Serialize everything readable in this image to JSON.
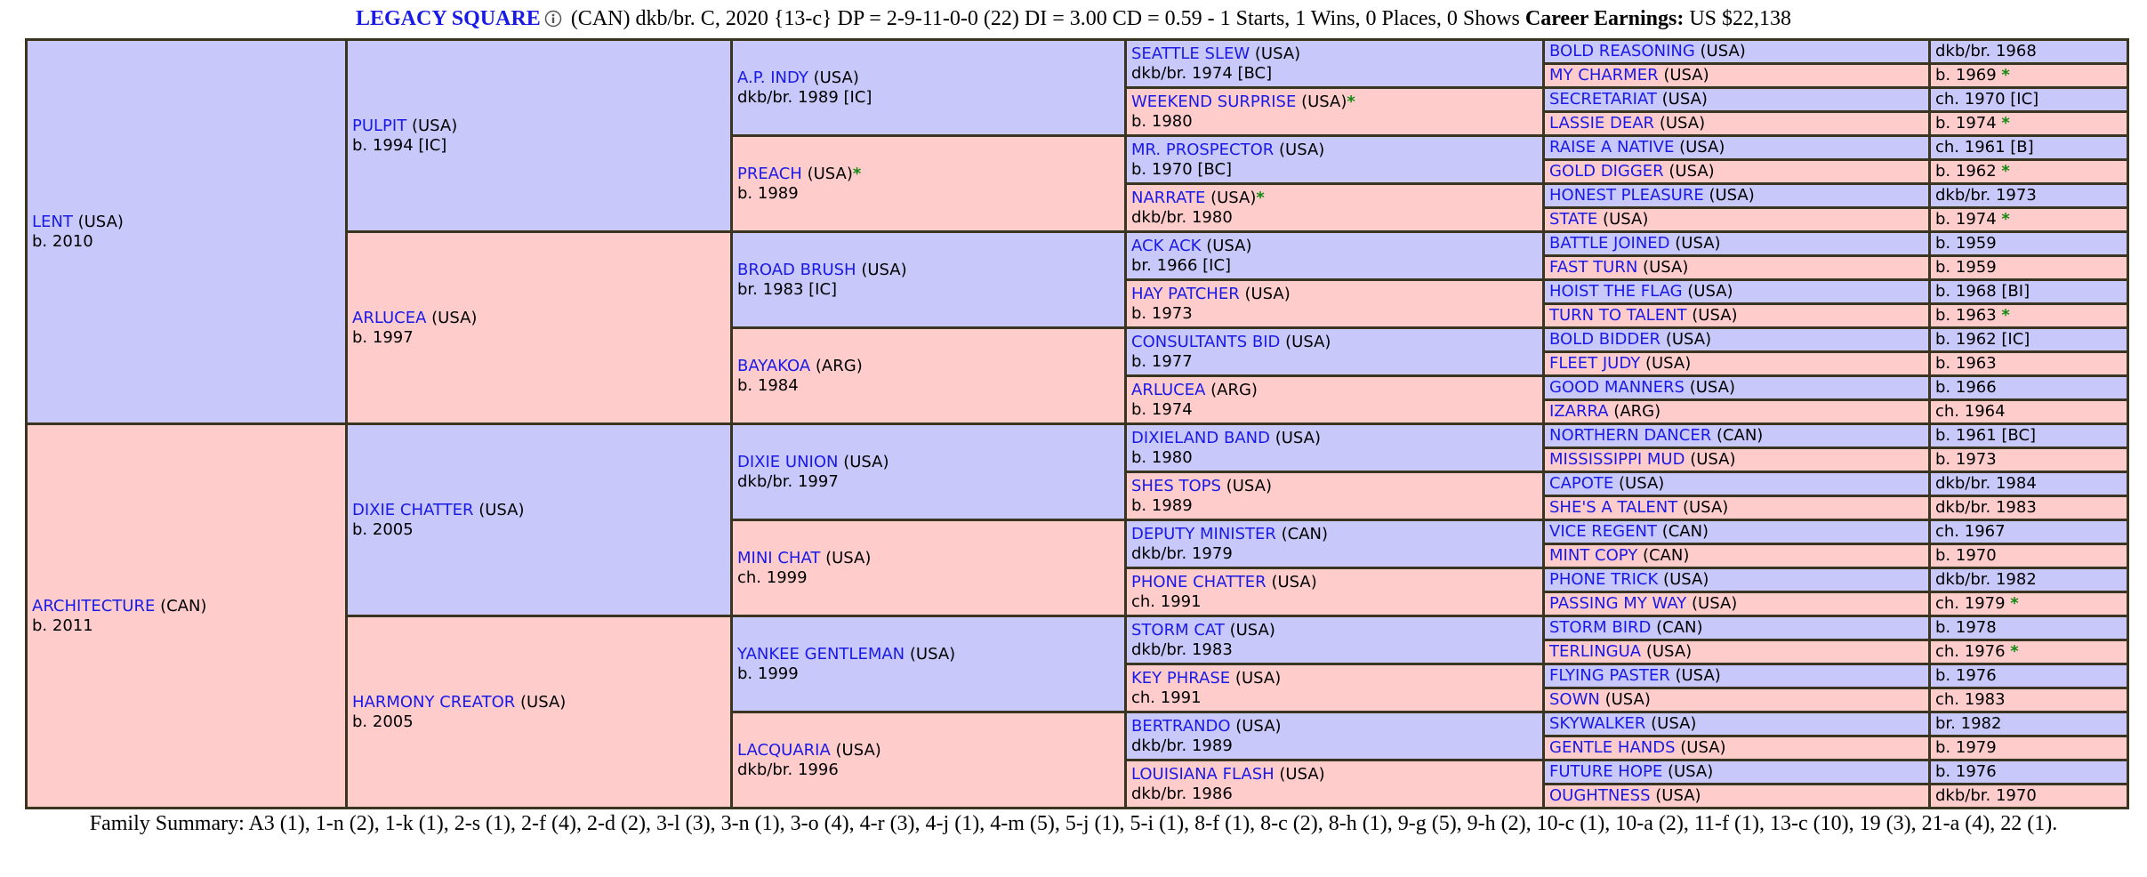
{
  "header": {
    "name": "LEGACY SQUARE",
    "details": "(CAN) dkb/br. C, 2020 {13-c} DP = 2-9-11-0-0 (22) DI = 3.00   CD = 0.59 - 1 Starts, 1 Wins, 0 Places, 0 Shows",
    "earnings_label": "Career Earnings:",
    "earnings": "US $22,138"
  },
  "generations": [
    [
      {
        "name": "LENT",
        "country": "(USA)",
        "birth": "b. 2010"
      },
      {
        "name": "ARCHITECTURE",
        "country": "(CAN)",
        "birth": "b. 2011"
      }
    ],
    [
      {
        "name": "PULPIT",
        "country": "(USA)",
        "birth": "b. 1994 [IC]"
      },
      {
        "name": "ARLUCEA",
        "country": "(USA)",
        "birth": "b. 1997"
      },
      {
        "name": "DIXIE CHATTER",
        "country": "(USA)",
        "birth": "b. 2005"
      },
      {
        "name": "HARMONY CREATOR",
        "country": "(USA)",
        "birth": "b. 2005"
      }
    ],
    [
      {
        "name": "A.P. INDY",
        "country": "(USA)",
        "birth": "dkb/br. 1989 [IC]"
      },
      {
        "name": "PREACH",
        "country": "(USA)",
        "star": "*",
        "birth": "b. 1989"
      },
      {
        "name": "BROAD BRUSH",
        "country": "(USA)",
        "birth": "br. 1983 [IC]"
      },
      {
        "name": "BAYAKOA",
        "country": "(ARG)",
        "birth": "b. 1984"
      },
      {
        "name": "DIXIE UNION",
        "country": "(USA)",
        "birth": "dkb/br. 1997"
      },
      {
        "name": "MINI CHAT",
        "country": "(USA)",
        "birth": "ch. 1999"
      },
      {
        "name": "YANKEE GENTLEMAN",
        "country": "(USA)",
        "birth": "b. 1999"
      },
      {
        "name": "LACQUARIA",
        "country": "(USA)",
        "birth": "dkb/br. 1996"
      }
    ],
    [
      {
        "name": "SEATTLE SLEW",
        "country": "(USA)",
        "birth": "dkb/br. 1974 [BC]"
      },
      {
        "name": "WEEKEND SURPRISE",
        "country": "(USA)",
        "star": "*",
        "birth": "b. 1980"
      },
      {
        "name": "MR. PROSPECTOR",
        "country": "(USA)",
        "birth": "b. 1970 [BC]"
      },
      {
        "name": "NARRATE",
        "country": "(USA)",
        "star": "*",
        "birth": "dkb/br. 1980"
      },
      {
        "name": "ACK ACK",
        "country": "(USA)",
        "birth": "br. 1966 [IC]"
      },
      {
        "name": "HAY PATCHER",
        "country": "(USA)",
        "birth": "b. 1973"
      },
      {
        "name": "CONSULTANTS BID",
        "country": "(USA)",
        "birth": "b. 1977"
      },
      {
        "name": "ARLUCEA",
        "country": "(ARG)",
        "birth": "b. 1974"
      },
      {
        "name": "DIXIELAND BAND",
        "country": "(USA)",
        "birth": "b. 1980"
      },
      {
        "name": "SHES TOPS",
        "country": "(USA)",
        "birth": "b. 1989"
      },
      {
        "name": "DEPUTY MINISTER",
        "country": "(CAN)",
        "birth": "dkb/br. 1979"
      },
      {
        "name": "PHONE CHATTER",
        "country": "(USA)",
        "birth": "ch. 1991"
      },
      {
        "name": "STORM CAT",
        "country": "(USA)",
        "birth": "dkb/br. 1983"
      },
      {
        "name": "KEY PHRASE",
        "country": "(USA)",
        "birth": "ch. 1991"
      },
      {
        "name": "BERTRANDO",
        "country": "(USA)",
        "birth": "dkb/br. 1989"
      },
      {
        "name": "LOUISIANA FLASH",
        "country": "(USA)",
        "birth": "dkb/br. 1986"
      }
    ],
    [
      {
        "name": "BOLD REASONING",
        "country": "(USA)",
        "birth": "dkb/br. 1968"
      },
      {
        "name": "MY CHARMER",
        "country": "(USA)",
        "birth": "b. 1969",
        "star": "*"
      },
      {
        "name": "SECRETARIAT",
        "country": "(USA)",
        "birth": "ch. 1970 [IC]"
      },
      {
        "name": "LASSIE DEAR",
        "country": "(USA)",
        "birth": "b. 1974",
        "star": "*"
      },
      {
        "name": "RAISE A NATIVE",
        "country": "(USA)",
        "birth": "ch. 1961 [B]"
      },
      {
        "name": "GOLD DIGGER",
        "country": "(USA)",
        "birth": "b. 1962",
        "star": "*"
      },
      {
        "name": "HONEST PLEASURE",
        "country": "(USA)",
        "birth": "dkb/br. 1973"
      },
      {
        "name": "STATE",
        "country": "(USA)",
        "birth": "b. 1974",
        "star": "*"
      },
      {
        "name": "BATTLE JOINED",
        "country": "(USA)",
        "birth": "b. 1959"
      },
      {
        "name": "FAST TURN",
        "country": "(USA)",
        "birth": "b. 1959"
      },
      {
        "name": "HOIST THE FLAG",
        "country": "(USA)",
        "birth": "b. 1968 [BI]"
      },
      {
        "name": "TURN TO TALENT",
        "country": "(USA)",
        "birth": "b. 1963",
        "star": "*"
      },
      {
        "name": "BOLD BIDDER",
        "country": "(USA)",
        "birth": "b. 1962 [IC]"
      },
      {
        "name": "FLEET JUDY",
        "country": "(USA)",
        "birth": "b. 1963"
      },
      {
        "name": "GOOD MANNERS",
        "country": "(USA)",
        "birth": "b. 1966"
      },
      {
        "name": "IZARRA",
        "country": "(ARG)",
        "birth": "ch. 1964"
      },
      {
        "name": "NORTHERN DANCER",
        "country": "(CAN)",
        "birth": "b. 1961 [BC]"
      },
      {
        "name": "MISSISSIPPI MUD",
        "country": "(USA)",
        "birth": "b. 1973"
      },
      {
        "name": "CAPOTE",
        "country": "(USA)",
        "birth": "dkb/br. 1984"
      },
      {
        "name": "SHE'S A TALENT",
        "country": "(USA)",
        "birth": "dkb/br. 1983"
      },
      {
        "name": "VICE REGENT",
        "country": "(CAN)",
        "birth": "ch. 1967"
      },
      {
        "name": "MINT COPY",
        "country": "(CAN)",
        "birth": "b. 1970"
      },
      {
        "name": "PHONE TRICK",
        "country": "(USA)",
        "birth": "dkb/br. 1982"
      },
      {
        "name": "PASSING MY WAY",
        "country": "(USA)",
        "birth": "ch. 1979",
        "star": "*"
      },
      {
        "name": "STORM BIRD",
        "country": "(CAN)",
        "birth": "b. 1978"
      },
      {
        "name": "TERLINGUA",
        "country": "(USA)",
        "birth": "ch. 1976",
        "star": "*"
      },
      {
        "name": "FLYING PASTER",
        "country": "(USA)",
        "birth": "b. 1976"
      },
      {
        "name": "SOWN",
        "country": "(USA)",
        "birth": "ch. 1983"
      },
      {
        "name": "SKYWALKER",
        "country": "(USA)",
        "birth": "br. 1982"
      },
      {
        "name": "GENTLE HANDS",
        "country": "(USA)",
        "birth": "b. 1979"
      },
      {
        "name": "FUTURE HOPE",
        "country": "(USA)",
        "birth": "b. 1976"
      },
      {
        "name": "OUGHTNESS",
        "country": "(USA)",
        "birth": "dkb/br. 1970"
      }
    ]
  ],
  "family_summary": {
    "label": "Family Summary:",
    "text": "A3 (1), 1-n (2), 1-k (1), 2-s (1), 2-f (4), 2-d (2), 3-l (3), 3-n (1), 3-o (4), 4-r (3), 4-j (1), 4-m (5), 5-j (1), 5-i (1), 8-f (1), 8-c (2), 8-h (1), 9-g (5), 9-h (2), 10-c (1), 10-a (2), 11-f (1), 13-c (10), 19 (3), 21-a (4), 22 (1)."
  }
}
